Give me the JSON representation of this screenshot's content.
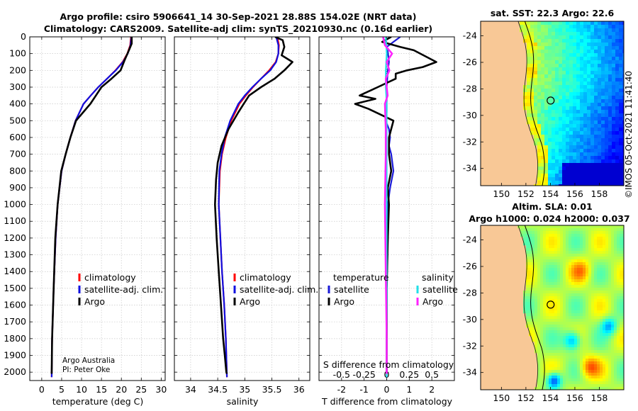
{
  "colors": {
    "climatology": "#ff0000",
    "satellite_adj": "#1010e0",
    "argo": "#000000",
    "sat_temp_diff": "#1a1ad8",
    "sat_sal_diff": "#22e0e8",
    "argo_sal_diff": "#ff22ff",
    "land": "#f8c896",
    "map_marker": "#000000"
  },
  "stamp": "©IMOS 05-Oct-2021 11:41:40",
  "chart_data": [
    {
      "id": "temperature",
      "type": "line",
      "title_line1": "Argo profile: csiro 5906641_14 30-Sep-2021 28.88S 154.02E (NRT data)",
      "title_line2": "Climatology: CARS2009. Satellite-adj clim: synTS_20210930.nc (0.16d earlier)",
      "xlabel": "temperature (deg C)",
      "xlim": [
        -3,
        31
      ],
      "ylim": [
        0,
        2050
      ],
      "yticks": [
        0,
        100,
        200,
        300,
        400,
        500,
        600,
        700,
        800,
        900,
        1000,
        1100,
        1200,
        1300,
        1400,
        1500,
        1600,
        1700,
        1800,
        1900,
        2000
      ],
      "ytick_labels": [
        "0",
        "100",
        "200",
        "300",
        "400",
        "500",
        "600",
        "700",
        "800",
        "900",
        "1000",
        "1100",
        "1200",
        "1300",
        "1400",
        "1500",
        "1600",
        "1700",
        "1800",
        "1900",
        "2000"
      ],
      "xticks": [
        0,
        5,
        10,
        15,
        20,
        25,
        30
      ],
      "xtick_labels": [
        "0",
        "5",
        "10",
        "15",
        "20",
        "25",
        "30"
      ],
      "grid": true,
      "legend": [
        "climatology",
        "satellite-adj. clim.",
        "Argo"
      ],
      "credit_line1": "Argo Australia",
      "credit_line2": "PI: Peter Oke",
      "series": [
        {
          "name": "climatology",
          "x": [
            22.4,
            22.2,
            21.5,
            20.3,
            18.5,
            16.4,
            14.2,
            12.3,
            10.5,
            8.5,
            7.2,
            6.0,
            5.0,
            4.0,
            3.5,
            3.0,
            2.6,
            2.5
          ],
          "y": [
            0,
            50,
            100,
            150,
            200,
            250,
            300,
            350,
            400,
            500,
            600,
            700,
            800,
            1000,
            1200,
            1500,
            1800,
            2030
          ]
        },
        {
          "name": "satellite-adj. clim.",
          "x": [
            22.5,
            22.3,
            21.6,
            20.4,
            18.6,
            16.4,
            14.2,
            12.3,
            10.5,
            8.5,
            7.2,
            6.0,
            5.0,
            4.0,
            3.5,
            3.0,
            2.6,
            2.5
          ],
          "y": [
            0,
            50,
            100,
            150,
            200,
            250,
            300,
            350,
            400,
            500,
            600,
            700,
            800,
            1000,
            1200,
            1500,
            1800,
            2030
          ]
        },
        {
          "name": "Argo",
          "x": [
            22.6,
            22.6,
            21.9,
            20.8,
            19.8,
            17.5,
            15.0,
            13.6,
            12.2,
            10.4,
            8.6,
            7.2,
            6.0,
            4.9,
            4.0,
            3.4,
            3.0,
            2.6,
            2.5
          ],
          "y": [
            0,
            40,
            80,
            140,
            200,
            250,
            300,
            350,
            400,
            450,
            500,
            600,
            700,
            800,
            1000,
            1200,
            1500,
            1800,
            2010
          ]
        }
      ]
    },
    {
      "id": "salinity",
      "type": "line",
      "xlabel": "salinity",
      "xlim": [
        33.7,
        36.2
      ],
      "ylim": [
        0,
        2050
      ],
      "xticks": [
        34,
        34.5,
        35,
        35.5,
        36
      ],
      "xtick_labels": [
        "34",
        "34.5",
        "35",
        "35.5",
        "36"
      ],
      "grid": true,
      "legend": [
        "climatology",
        "satellite-adj. clim.",
        "Argo"
      ],
      "series": [
        {
          "name": "climatology",
          "x": [
            35.6,
            35.63,
            35.62,
            35.57,
            35.45,
            35.3,
            35.15,
            35.02,
            34.9,
            34.75,
            34.65,
            34.58,
            34.54,
            34.52,
            34.55,
            34.58,
            34.62,
            34.65,
            34.67
          ],
          "y": [
            0,
            50,
            100,
            150,
            200,
            250,
            300,
            350,
            400,
            500,
            600,
            700,
            800,
            1000,
            1200,
            1400,
            1600,
            1800,
            2030
          ]
        },
        {
          "name": "satellite-adj. clim.",
          "x": [
            35.58,
            35.62,
            35.62,
            35.58,
            35.47,
            35.3,
            35.14,
            35.0,
            34.88,
            34.73,
            34.63,
            34.57,
            34.53,
            34.52,
            34.55,
            34.58,
            34.62,
            34.65,
            34.67
          ],
          "y": [
            0,
            50,
            100,
            150,
            200,
            250,
            300,
            350,
            400,
            500,
            600,
            700,
            800,
            1000,
            1200,
            1400,
            1600,
            1800,
            2030
          ]
        },
        {
          "name": "Argo",
          "x": [
            35.56,
            35.7,
            35.73,
            35.68,
            35.88,
            35.73,
            35.55,
            35.3,
            35.08,
            34.98,
            34.88,
            34.7,
            34.57,
            34.5,
            34.47,
            34.45,
            34.48,
            34.52,
            34.56,
            34.6,
            34.63,
            34.66,
            34.67
          ],
          "y": [
            0,
            20,
            60,
            110,
            150,
            200,
            250,
            300,
            350,
            400,
            450,
            550,
            650,
            750,
            850,
            1000,
            1200,
            1400,
            1600,
            1800,
            1900,
            2000,
            2010
          ]
        }
      ]
    },
    {
      "id": "difference",
      "type": "line",
      "xlabel": "T difference from climatology",
      "xlabel_top": "S difference from climatology",
      "xlim": [
        -3,
        3
      ],
      "ylim": [
        0,
        2050
      ],
      "xticks": [
        -2,
        -1,
        0,
        1,
        2
      ],
      "xtick_labels": [
        "-2",
        "-1",
        "0",
        "1",
        "2"
      ],
      "sticks": [
        -0.5,
        -0.25,
        0,
        0.25,
        0.5
      ],
      "stick_labels": [
        "-0.5",
        "-0.25",
        "0",
        "0.25",
        "0.5"
      ],
      "grid": true,
      "legend_temperature_title": "temperature",
      "legend_salinity_title": "salinity",
      "legend_temperature": [
        "satellite",
        "Argo"
      ],
      "legend_salinity": [
        "satellite",
        "Argo"
      ],
      "series": [
        {
          "name": "temperature satellite",
          "x": [
            0.6,
            0.3,
            0.0,
            0.05,
            0.1,
            0.05,
            0.0,
            0.0,
            0.0,
            -0.05,
            0.1,
            0.15,
            0.1,
            0.2,
            0.3,
            0.15,
            0.05,
            0.05,
            0.0,
            0.0
          ],
          "y": [
            0,
            30,
            60,
            90,
            150,
            200,
            300,
            400,
            450,
            500,
            550,
            600,
            650,
            700,
            800,
            900,
            1000,
            1200,
            1500,
            2030
          ]
        },
        {
          "name": "temperature Argo",
          "x": [
            0.2,
            -0.2,
            0.6,
            1.2,
            2.2,
            1.6,
            0.9,
            0.4,
            0.4,
            -0.4,
            -1.2,
            -0.5,
            -1.4,
            -0.8,
            0.3,
            0.1,
            0.1,
            0.2,
            0.05,
            0.1,
            0.05,
            0.0,
            0.0
          ],
          "y": [
            0,
            30,
            60,
            80,
            150,
            180,
            200,
            220,
            250,
            300,
            350,
            370,
            400,
            430,
            500,
            600,
            700,
            800,
            900,
            1000,
            1200,
            1500,
            2010
          ]
        },
        {
          "name": "salinity satellite",
          "x": [
            -0.01,
            0.0,
            -0.01,
            -0.01,
            0.0,
            0.0,
            0.0,
            0.0
          ],
          "y": [
            0,
            100,
            200,
            300,
            400,
            600,
            1000,
            2030
          ]
        },
        {
          "name": "salinity Argo",
          "x": [
            -0.04,
            -0.02,
            0.06,
            0.0,
            0.03,
            -0.01,
            0.0,
            0.01,
            -0.02,
            -0.01,
            -0.01,
            -0.02,
            -0.01,
            0.0,
            0.0
          ],
          "y": [
            0,
            50,
            100,
            150,
            200,
            250,
            300,
            350,
            400,
            550,
            700,
            1000,
            1400,
            1800,
            2010
          ]
        }
      ]
    },
    {
      "id": "sst-map",
      "type": "heatmap",
      "title": "sat. SST: 22.3  Argo: 22.6",
      "xticks": [
        150,
        152,
        154,
        156,
        158
      ],
      "xtick_labels": [
        "150",
        "152",
        "154",
        "156",
        "158"
      ],
      "yticks": [
        -24,
        -26,
        -28,
        -30,
        -32,
        -34
      ],
      "ytick_labels": [
        "-24",
        "-26",
        "-28",
        "-30",
        "-32",
        "-34"
      ],
      "xlim": [
        148.3,
        160.0
      ],
      "ylim": [
        -35.3,
        -22.9
      ],
      "marker": {
        "lon": 154.02,
        "lat": -28.88
      }
    },
    {
      "id": "sla-map",
      "type": "heatmap",
      "title_line1": "Altim. SLA: 0.01",
      "title_line2": "Argo h1000: 0.024  h2000: 0.037",
      "xticks": [
        150,
        152,
        154,
        156,
        158
      ],
      "xtick_labels": [
        "150",
        "152",
        "154",
        "156",
        "158"
      ],
      "yticks": [
        -24,
        -26,
        -28,
        -30,
        -32,
        -34
      ],
      "ytick_labels": [
        "-24",
        "-26",
        "-28",
        "-30",
        "-32",
        "-34"
      ],
      "xlim": [
        148.3,
        160.0
      ],
      "ylim": [
        -35.3,
        -22.9
      ],
      "marker": {
        "lon": 154.02,
        "lat": -28.88
      }
    }
  ]
}
